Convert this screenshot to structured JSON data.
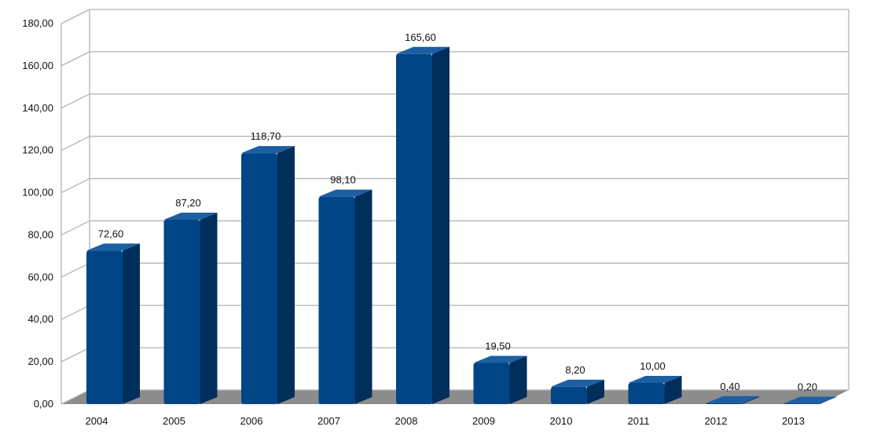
{
  "chart_data": {
    "type": "bar",
    "categories": [
      "2004",
      "2005",
      "2006",
      "2007",
      "2008",
      "2009",
      "2010",
      "2011",
      "2012",
      "2013"
    ],
    "values": [
      72.6,
      87.2,
      118.7,
      98.1,
      165.6,
      19.5,
      8.2,
      10.0,
      0.4,
      0.2
    ],
    "value_labels": [
      "72,60",
      "87,20",
      "118,70",
      "98,10",
      "165,60",
      "19,50",
      "8,20",
      "10,00",
      "0,40",
      "0,20"
    ],
    "y_ticks": [
      "0,00",
      "20,00",
      "40,00",
      "60,00",
      "80,00",
      "100,00",
      "120,00",
      "140,00",
      "160,00",
      "180,00"
    ],
    "ylim": [
      0,
      180
    ],
    "grid": true,
    "legend": "none",
    "title": "",
    "xlabel": "",
    "ylabel": "",
    "colors": {
      "bar_front": "#004586",
      "bar_side": "#002f5c",
      "bar_top": "#1d5fa3",
      "floor": "#8c8c8c",
      "grid": "#b3b3b3",
      "wall_frame": "#b3b3b3"
    }
  }
}
